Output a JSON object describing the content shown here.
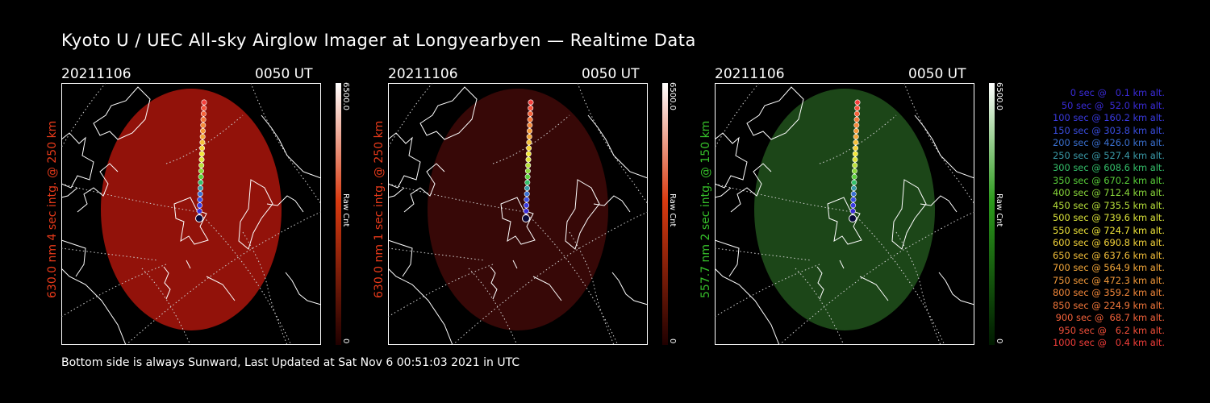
{
  "title": "Kyoto U / UEC All-sky Airglow Imager at Longyearbyen — Realtime Data",
  "panels": [
    {
      "date": "20211106",
      "time": "0050 UT",
      "vlabel": "630.0 nm 4 sec intg. @ 250 km",
      "label_color": "#e83a1a",
      "fill": "#9a130b",
      "fill_opacity": 0.95,
      "cbar_top": "#ffffff",
      "cbar_mid": "#d83a10",
      "cbar_bottom": "#200000",
      "cbar_max": "6500.0",
      "cbar_unit": "Raw Cnt",
      "cbar_min": "0"
    },
    {
      "date": "20211106",
      "time": "0050 UT",
      "vlabel": "630.0 nm 1 sec intg. @ 250 km",
      "label_color": "#e83a1a",
      "fill": "#3a0807",
      "fill_opacity": 0.95,
      "cbar_top": "#ffffff",
      "cbar_mid": "#d83a10",
      "cbar_bottom": "#200000",
      "cbar_max": "6500.0",
      "cbar_unit": "Raw Cnt",
      "cbar_min": "0"
    },
    {
      "date": "20211106",
      "time": "0050 UT",
      "vlabel": "557.7 nm 2 sec intg. @ 150 km",
      "label_color": "#36c02a",
      "fill": "#1e4a19",
      "fill_opacity": 0.95,
      "cbar_top": "#ffffff",
      "cbar_mid": "#2c9a1c",
      "cbar_bottom": "#001a00",
      "cbar_max": "6500.0",
      "cbar_unit": "Raw Cnt",
      "cbar_min": "0"
    }
  ],
  "footer": "Bottom side is always Sunward, Last Updated at Sat Nov  6 00:51:03 2021 in UTC",
  "legend": [
    {
      "text": "   0 sec @   0.1 km alt.",
      "color": "#3a2bd8"
    },
    {
      "text": "  50 sec @  52.0 km alt.",
      "color": "#3a2bd8"
    },
    {
      "text": " 100 sec @ 160.2 km alt.",
      "color": "#3a3ae0"
    },
    {
      "text": " 150 sec @ 303.8 km alt.",
      "color": "#3a4ee0"
    },
    {
      "text": " 200 sec @ 426.0 km alt.",
      "color": "#3a70d0"
    },
    {
      "text": " 250 sec @ 527.4 km alt.",
      "color": "#3a9aa8"
    },
    {
      "text": " 300 sec @ 608.6 km alt.",
      "color": "#34c06a"
    },
    {
      "text": " 350 sec @ 670.2 km alt.",
      "color": "#5ad03a"
    },
    {
      "text": " 400 sec @ 712.4 km alt.",
      "color": "#8ad83a"
    },
    {
      "text": " 450 sec @ 735.5 km alt.",
      "color": "#b8e03a"
    },
    {
      "text": " 500 sec @ 739.6 km alt.",
      "color": "#dce43a"
    },
    {
      "text": " 550 sec @ 724.7 km alt.",
      "color": "#f0e63a"
    },
    {
      "text": " 600 sec @ 690.8 km alt.",
      "color": "#f4d43a"
    },
    {
      "text": " 650 sec @ 637.6 km alt.",
      "color": "#f4c03a"
    },
    {
      "text": " 700 sec @ 564.9 km alt.",
      "color": "#f4a83a"
    },
    {
      "text": " 750 sec @ 472.3 km alt.",
      "color": "#f49a3a"
    },
    {
      "text": " 800 sec @ 359.2 km alt.",
      "color": "#f4883a"
    },
    {
      "text": " 850 sec @ 224.9 km alt.",
      "color": "#f4783a"
    },
    {
      "text": " 900 sec @  68.7 km alt.",
      "color": "#f4623a"
    },
    {
      "text": " 950 sec @   6.2 km alt.",
      "color": "#f4503a"
    },
    {
      "text": "1000 sec @   0.4 km alt.",
      "color": "#f43e3a"
    }
  ]
}
